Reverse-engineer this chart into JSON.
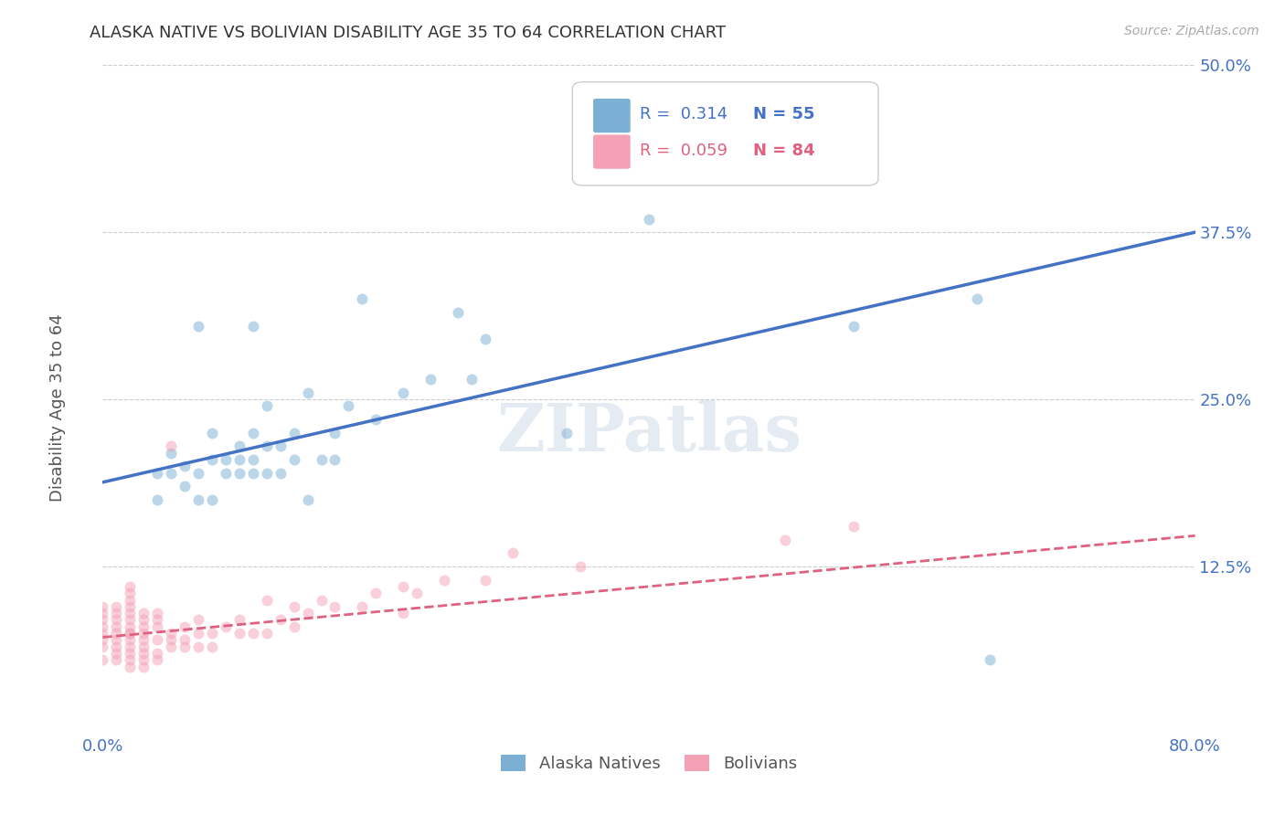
{
  "title": "ALASKA NATIVE VS BOLIVIAN DISABILITY AGE 35 TO 64 CORRELATION CHART",
  "source": "Source: ZipAtlas.com",
  "ylabel": "Disability Age 35 to 64",
  "xlim": [
    0.0,
    0.8
  ],
  "ylim": [
    0.0,
    0.5
  ],
  "xticks": [
    0.0,
    0.1,
    0.2,
    0.3,
    0.4,
    0.5,
    0.6,
    0.7,
    0.8
  ],
  "xticklabels": [
    "0.0%",
    "",
    "",
    "",
    "",
    "",
    "",
    "",
    "80.0%"
  ],
  "yticks": [
    0.0,
    0.125,
    0.25,
    0.375,
    0.5
  ],
  "yticklabels": [
    "",
    "12.5%",
    "25.0%",
    "37.5%",
    "50.0%"
  ],
  "alaska_color": "#7bafd4",
  "bolivian_color": "#f4a0b5",
  "trend_alaska_color": "#4472c4",
  "trend_bolivian_color": "#e06080",
  "axis_color": "#4472c4",
  "title_color": "#333333",
  "watermark": "ZIPatlas",
  "alaska_points_x": [
    0.04,
    0.04,
    0.05,
    0.05,
    0.06,
    0.06,
    0.07,
    0.07,
    0.07,
    0.08,
    0.08,
    0.08,
    0.09,
    0.09,
    0.1,
    0.1,
    0.1,
    0.11,
    0.11,
    0.11,
    0.11,
    0.12,
    0.12,
    0.12,
    0.13,
    0.13,
    0.14,
    0.14,
    0.15,
    0.15,
    0.16,
    0.17,
    0.17,
    0.18,
    0.19,
    0.2,
    0.22,
    0.24,
    0.26,
    0.27,
    0.28,
    0.34,
    0.4,
    0.5,
    0.55,
    0.64,
    0.65
  ],
  "alaska_points_y": [
    0.175,
    0.195,
    0.195,
    0.21,
    0.185,
    0.2,
    0.175,
    0.195,
    0.305,
    0.175,
    0.205,
    0.225,
    0.195,
    0.205,
    0.195,
    0.205,
    0.215,
    0.195,
    0.205,
    0.225,
    0.305,
    0.195,
    0.215,
    0.245,
    0.195,
    0.215,
    0.205,
    0.225,
    0.175,
    0.255,
    0.205,
    0.205,
    0.225,
    0.245,
    0.325,
    0.235,
    0.255,
    0.265,
    0.315,
    0.265,
    0.295,
    0.225,
    0.385,
    0.425,
    0.305,
    0.325,
    0.055
  ],
  "bolivian_points_x": [
    0.0,
    0.0,
    0.0,
    0.0,
    0.0,
    0.0,
    0.0,
    0.0,
    0.01,
    0.01,
    0.01,
    0.01,
    0.01,
    0.01,
    0.01,
    0.01,
    0.01,
    0.02,
    0.02,
    0.02,
    0.02,
    0.02,
    0.02,
    0.02,
    0.02,
    0.02,
    0.02,
    0.02,
    0.02,
    0.02,
    0.02,
    0.03,
    0.03,
    0.03,
    0.03,
    0.03,
    0.03,
    0.03,
    0.03,
    0.03,
    0.04,
    0.04,
    0.04,
    0.04,
    0.04,
    0.04,
    0.05,
    0.05,
    0.05,
    0.05,
    0.06,
    0.06,
    0.06,
    0.07,
    0.07,
    0.07,
    0.08,
    0.08,
    0.09,
    0.1,
    0.1,
    0.11,
    0.12,
    0.12,
    0.13,
    0.14,
    0.14,
    0.15,
    0.16,
    0.17,
    0.19,
    0.2,
    0.22,
    0.22,
    0.23,
    0.25,
    0.28,
    0.3,
    0.35,
    0.5,
    0.55
  ],
  "bolivian_points_y": [
    0.055,
    0.065,
    0.07,
    0.075,
    0.08,
    0.085,
    0.09,
    0.095,
    0.055,
    0.06,
    0.065,
    0.07,
    0.075,
    0.08,
    0.085,
    0.09,
    0.095,
    0.05,
    0.055,
    0.06,
    0.065,
    0.07,
    0.075,
    0.075,
    0.08,
    0.085,
    0.09,
    0.095,
    0.1,
    0.105,
    0.11,
    0.05,
    0.055,
    0.06,
    0.065,
    0.07,
    0.075,
    0.08,
    0.085,
    0.09,
    0.055,
    0.06,
    0.07,
    0.08,
    0.085,
    0.09,
    0.065,
    0.07,
    0.075,
    0.215,
    0.065,
    0.07,
    0.08,
    0.065,
    0.075,
    0.085,
    0.065,
    0.075,
    0.08,
    0.075,
    0.085,
    0.075,
    0.075,
    0.1,
    0.085,
    0.08,
    0.095,
    0.09,
    0.1,
    0.095,
    0.095,
    0.105,
    0.09,
    0.11,
    0.105,
    0.115,
    0.115,
    0.135,
    0.125,
    0.145,
    0.155
  ],
  "alaska_trend_x": [
    0.0,
    0.8
  ],
  "alaska_trend_y": [
    0.188,
    0.375
  ],
  "bolivian_trend_x": [
    0.0,
    0.8
  ],
  "bolivian_trend_y": [
    0.072,
    0.148
  ],
  "background_color": "#ffffff",
  "grid_color": "#cccccc",
  "marker_size": 75,
  "marker_alpha": 0.5
}
